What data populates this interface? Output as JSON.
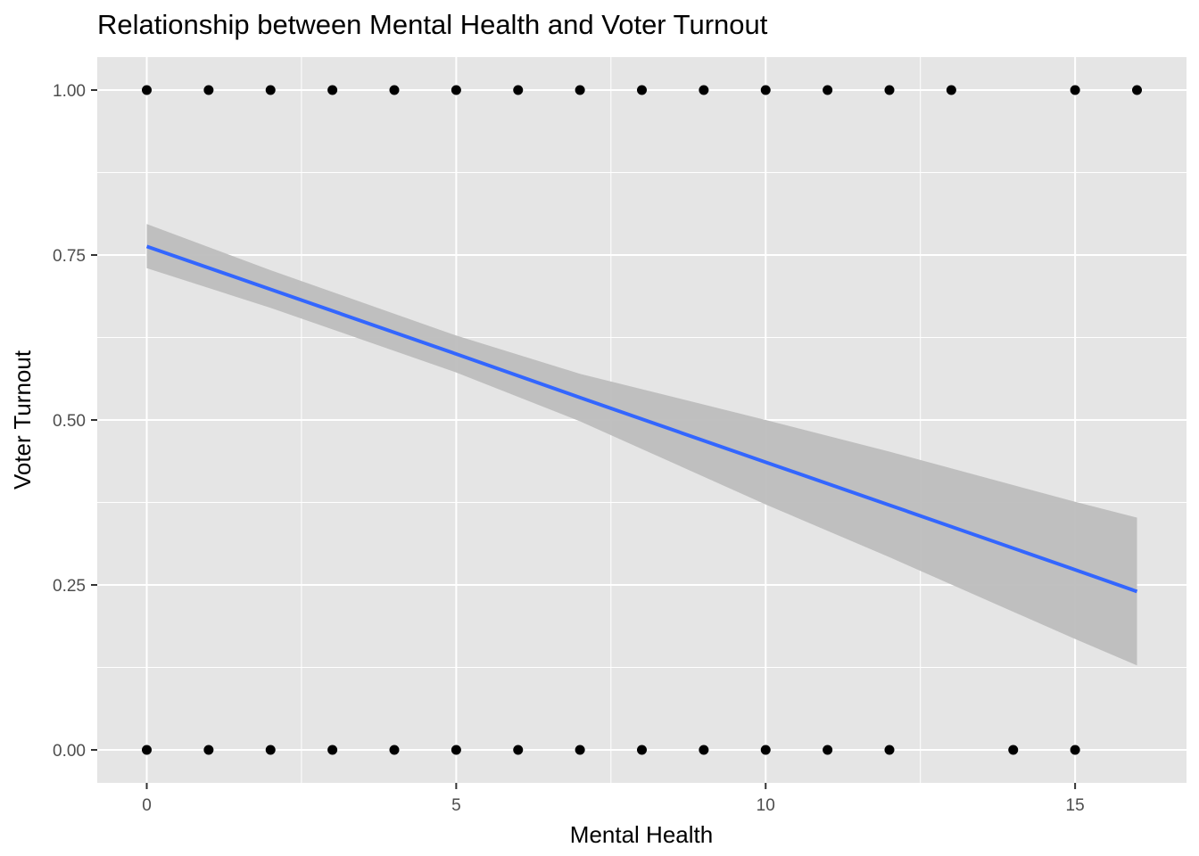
{
  "chart_data": {
    "type": "scatter",
    "title": "Relationship between Mental Health and Voter Turnout",
    "xlabel": "Mental Health",
    "ylabel": "Voter Turnout",
    "xlim": [
      -0.8,
      16.8
    ],
    "ylim": [
      -0.05,
      1.05
    ],
    "x_ticks": [
      0,
      5,
      10,
      15
    ],
    "x_tick_labels": [
      "0",
      "5",
      "10",
      "15"
    ],
    "y_ticks": [
      0,
      0.25,
      0.5,
      0.75,
      1
    ],
    "y_tick_labels": [
      "0.00",
      "0.25",
      "0.50",
      "0.75",
      "1.00"
    ],
    "grid": true,
    "background_color": "#e5e5e5",
    "grid_color": "#ffffff",
    "point_color": "#000000",
    "line_color": "#3366ff",
    "ribbon_color": "#bdbdbd",
    "points": {
      "x_at_1": [
        0,
        1,
        2,
        3,
        4,
        5,
        6,
        7,
        8,
        9,
        10,
        11,
        12,
        13,
        15,
        16
      ],
      "x_at_0": [
        0,
        1,
        2,
        3,
        4,
        5,
        6,
        7,
        8,
        9,
        10,
        11,
        12,
        14,
        15
      ]
    },
    "smooth": {
      "method": "linear",
      "x": [
        0,
        2,
        5,
        7,
        10,
        12,
        15,
        16
      ],
      "fit": [
        0.763,
        0.698,
        0.6,
        0.534,
        0.436,
        0.371,
        0.273,
        0.24
      ],
      "lower": [
        0.73,
        0.67,
        0.572,
        0.498,
        0.372,
        0.292,
        0.168,
        0.128
      ],
      "upper": [
        0.797,
        0.727,
        0.628,
        0.57,
        0.5,
        0.452,
        0.376,
        0.352
      ]
    }
  }
}
